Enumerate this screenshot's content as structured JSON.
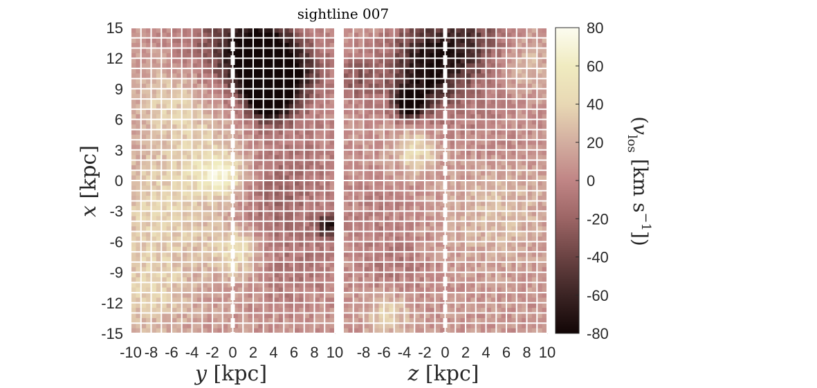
{
  "chart_data": {
    "type": "heatmap",
    "title": "sightline 007",
    "panels": [
      {
        "xlabel_var": "y",
        "xlabel_unit": "[kpc]",
        "ylabel_var": "x",
        "ylabel_unit": "[kpc]",
        "xlim": [
          -10,
          10
        ],
        "ylim": [
          -15,
          15
        ],
        "xticks": [
          "-10",
          "-8",
          "-6",
          "-4",
          "-2",
          "0",
          "2",
          "4",
          "6",
          "8",
          "10"
        ],
        "yticks": [
          "15",
          "12",
          "9",
          "6",
          "3",
          "0",
          "-3",
          "-6",
          "-9",
          "-12",
          "-15"
        ],
        "dashed_line_x": 0,
        "blobs": [
          {
            "x": 3.0,
            "y": 11.5,
            "v": -95,
            "r": 2.2
          },
          {
            "x": 4.0,
            "y": 9.0,
            "v": -80,
            "r": 2.0
          },
          {
            "x": 2.0,
            "y": 13.5,
            "v": -50,
            "r": 3.0
          },
          {
            "x": -2.0,
            "y": 13.5,
            "v": -20,
            "r": 3.0
          },
          {
            "x": 3.5,
            "y": 7.5,
            "v": -60,
            "r": 1.2
          },
          {
            "x": 7.0,
            "y": 11.0,
            "v": -30,
            "r": 2.0
          },
          {
            "x": 6.0,
            "y": 2.0,
            "v": -15,
            "r": 3.5
          },
          {
            "x": 4.0,
            "y": -3.0,
            "v": -20,
            "r": 3.0
          },
          {
            "x": 9.5,
            "y": -4.5,
            "v": -75,
            "r": 0.9
          },
          {
            "x": 6.0,
            "y": -9.0,
            "v": -15,
            "r": 3.0
          },
          {
            "x": -1.0,
            "y": 0.5,
            "v": 45,
            "r": 1.6
          },
          {
            "x": 0.5,
            "y": -7.0,
            "v": 40,
            "r": 1.8
          },
          {
            "x": -7.0,
            "y": -3.0,
            "v": 30,
            "r": 4.0
          },
          {
            "x": -8.0,
            "y": -11.0,
            "v": 25,
            "r": 3.0
          },
          {
            "x": -6.0,
            "y": 8.0,
            "v": 25,
            "r": 2.5
          },
          {
            "x": -3.0,
            "y": 3.0,
            "v": 20,
            "r": 3.0
          }
        ]
      },
      {
        "xlabel_var": "z",
        "xlabel_unit": "[kpc]",
        "xlim": [
          -10,
          10
        ],
        "ylim": [
          -15,
          15
        ],
        "xticks": [
          "-8",
          "-6",
          "-4",
          "-2",
          "0",
          "2",
          "4",
          "6",
          "8",
          "10"
        ],
        "dashed_line_x": 0,
        "blobs": [
          {
            "x": -3.5,
            "y": 7.5,
            "v": -95,
            "r": 1.0
          },
          {
            "x": -2.0,
            "y": 10.0,
            "v": -55,
            "r": 2.5
          },
          {
            "x": -1.0,
            "y": 13.0,
            "v": -45,
            "r": 3.0
          },
          {
            "x": 3.0,
            "y": 13.5,
            "v": -35,
            "r": 2.5
          },
          {
            "x": -8.5,
            "y": 10.0,
            "v": -35,
            "r": 1.5
          },
          {
            "x": 7.5,
            "y": 11.5,
            "v": 20,
            "r": 2.0
          },
          {
            "x": -3.0,
            "y": 3.0,
            "v": 40,
            "r": 1.5
          },
          {
            "x": 5.0,
            "y": -3.0,
            "v": 20,
            "r": 3.5
          },
          {
            "x": -5.5,
            "y": -13.0,
            "v": 35,
            "r": 1.5
          },
          {
            "x": -5.0,
            "y": -9.0,
            "v": -15,
            "r": 2.5
          },
          {
            "x": 4.0,
            "y": 5.0,
            "v": -10,
            "r": 3.0
          },
          {
            "x": -7.0,
            "y": -3.0,
            "v": -10,
            "r": 3.0
          }
        ]
      }
    ],
    "colorbar": {
      "label_var": "v",
      "label_sub": "los",
      "label_unit": "[km s",
      "label_exp": "−1",
      "label_close": "])",
      "label_open": "(",
      "range": [
        -80,
        80
      ],
      "ticks": [
        "80",
        "60",
        "40",
        "20",
        "0",
        "-20",
        "-40",
        "-60",
        "-80"
      ],
      "colormap": [
        "#120606",
        "#3b2424",
        "#6b4343",
        "#9c6565",
        "#c08585",
        "#d3aea0",
        "#e8d8b4",
        "#f0ebc0",
        "#fcfcf0"
      ]
    },
    "grid": "on (white overlay)"
  }
}
